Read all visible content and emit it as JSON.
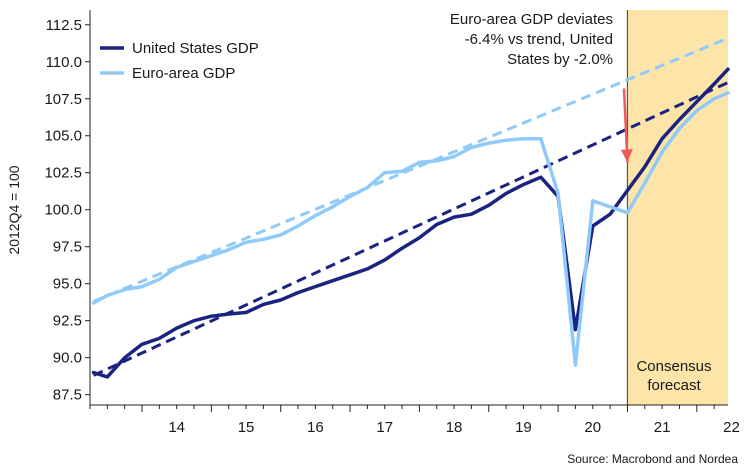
{
  "chart_data": {
    "type": "line",
    "ylabel": "2012Q4 = 100",
    "xlabel": "",
    "source": "Source: Macrobond and Nordea",
    "ylim": [
      86.8,
      113.5
    ],
    "xlim": [
      2013.25,
      2022.45
    ],
    "y_ticks": [
      87.5,
      90.0,
      92.5,
      95.0,
      97.5,
      100.0,
      102.5,
      105.0,
      107.5,
      110.0,
      112.5
    ],
    "y_tick_labels": [
      "87.5",
      "90.0",
      "92.5",
      "95.0",
      "97.5",
      "100.0",
      "102.5",
      "105.0",
      "107.5",
      "110.0",
      "112.5"
    ],
    "x_tick_labels": [
      {
        "label": "14",
        "x": 2014
      },
      {
        "label": "15",
        "x": 2015
      },
      {
        "label": "16",
        "x": 2016
      },
      {
        "label": "17",
        "x": 2017
      },
      {
        "label": "18",
        "x": 2018
      },
      {
        "label": "19",
        "x": 2019
      },
      {
        "label": "20",
        "x": 2020
      },
      {
        "label": "21",
        "x": 2021
      },
      {
        "label": "22",
        "x": 2022
      }
    ],
    "legend_position": "top-left",
    "series": [
      {
        "name": "United States GDP",
        "color": "#1a237e",
        "style": "solid",
        "points": [
          [
            2013.3,
            89.0
          ],
          [
            2013.5,
            88.7
          ],
          [
            2013.75,
            90.0
          ],
          [
            2014.0,
            90.9
          ],
          [
            2014.25,
            91.3
          ],
          [
            2014.5,
            92.0
          ],
          [
            2014.75,
            92.5
          ],
          [
            2015.0,
            92.8
          ],
          [
            2015.25,
            92.95
          ],
          [
            2015.5,
            93.05
          ],
          [
            2015.75,
            93.6
          ],
          [
            2016.0,
            93.9
          ],
          [
            2016.25,
            94.4
          ],
          [
            2016.5,
            94.8
          ],
          [
            2016.75,
            95.2
          ],
          [
            2017.0,
            95.6
          ],
          [
            2017.25,
            96.0
          ],
          [
            2017.5,
            96.6
          ],
          [
            2017.75,
            97.4
          ],
          [
            2018.0,
            98.1
          ],
          [
            2018.25,
            99.0
          ],
          [
            2018.5,
            99.5
          ],
          [
            2018.75,
            99.7
          ],
          [
            2019.0,
            100.3
          ],
          [
            2019.25,
            101.1
          ],
          [
            2019.5,
            101.7
          ],
          [
            2019.75,
            102.2
          ],
          [
            2020.0,
            100.9
          ],
          [
            2020.25,
            91.9
          ],
          [
            2020.5,
            98.9
          ],
          [
            2020.75,
            99.7
          ],
          [
            2021.0,
            101.3
          ],
          [
            2021.25,
            102.9
          ],
          [
            2021.5,
            104.8
          ],
          [
            2021.75,
            106.1
          ],
          [
            2022.0,
            107.3
          ],
          [
            2022.25,
            108.5
          ],
          [
            2022.45,
            109.5
          ]
        ]
      },
      {
        "name": "Euro-area GDP",
        "color": "#90caf9",
        "style": "solid",
        "points": [
          [
            2013.3,
            93.7
          ],
          [
            2013.5,
            94.2
          ],
          [
            2013.75,
            94.6
          ],
          [
            2014.0,
            94.8
          ],
          [
            2014.25,
            95.3
          ],
          [
            2014.5,
            96.1
          ],
          [
            2014.75,
            96.5
          ],
          [
            2015.0,
            96.9
          ],
          [
            2015.25,
            97.3
          ],
          [
            2015.5,
            97.8
          ],
          [
            2015.75,
            98.0
          ],
          [
            2016.0,
            98.3
          ],
          [
            2016.25,
            98.9
          ],
          [
            2016.5,
            99.6
          ],
          [
            2016.75,
            100.2
          ],
          [
            2017.0,
            100.9
          ],
          [
            2017.25,
            101.5
          ],
          [
            2017.5,
            102.5
          ],
          [
            2017.75,
            102.6
          ],
          [
            2018.0,
            103.2
          ],
          [
            2018.25,
            103.3
          ],
          [
            2018.5,
            103.6
          ],
          [
            2018.75,
            104.2
          ],
          [
            2019.0,
            104.5
          ],
          [
            2019.25,
            104.7
          ],
          [
            2019.5,
            104.8
          ],
          [
            2019.75,
            104.8
          ],
          [
            2020.0,
            101.1
          ],
          [
            2020.25,
            89.5
          ],
          [
            2020.5,
            100.6
          ],
          [
            2020.75,
            100.2
          ],
          [
            2021.0,
            99.8
          ],
          [
            2021.25,
            101.8
          ],
          [
            2021.5,
            103.9
          ],
          [
            2021.75,
            105.5
          ],
          [
            2022.0,
            106.7
          ],
          [
            2022.25,
            107.5
          ],
          [
            2022.45,
            107.9
          ]
        ]
      },
      {
        "name": "",
        "color": "#1a237e",
        "style": "dashed",
        "points": [
          [
            2013.3,
            88.8
          ],
          [
            2022.45,
            108.6
          ]
        ]
      },
      {
        "name": "",
        "color": "#90caf9",
        "style": "dashed",
        "points": [
          [
            2013.3,
            93.8
          ],
          [
            2022.45,
            111.6
          ]
        ]
      }
    ],
    "forecast_region": {
      "x_start": 2021.0,
      "x_end": 2022.45,
      "color": "#fde4a8",
      "label_line1": "Consensus",
      "label_line2": "forecast"
    },
    "annotation": {
      "line1": "Euro-area GDP deviates",
      "line2": "-6.4% vs trend, United",
      "line3": "States by -2.0%",
      "arrow_color": "#f05a5a",
      "arrow_from": [
        2020.95,
        108.2
      ],
      "arrow_to": [
        2021.0,
        103.2
      ]
    }
  }
}
